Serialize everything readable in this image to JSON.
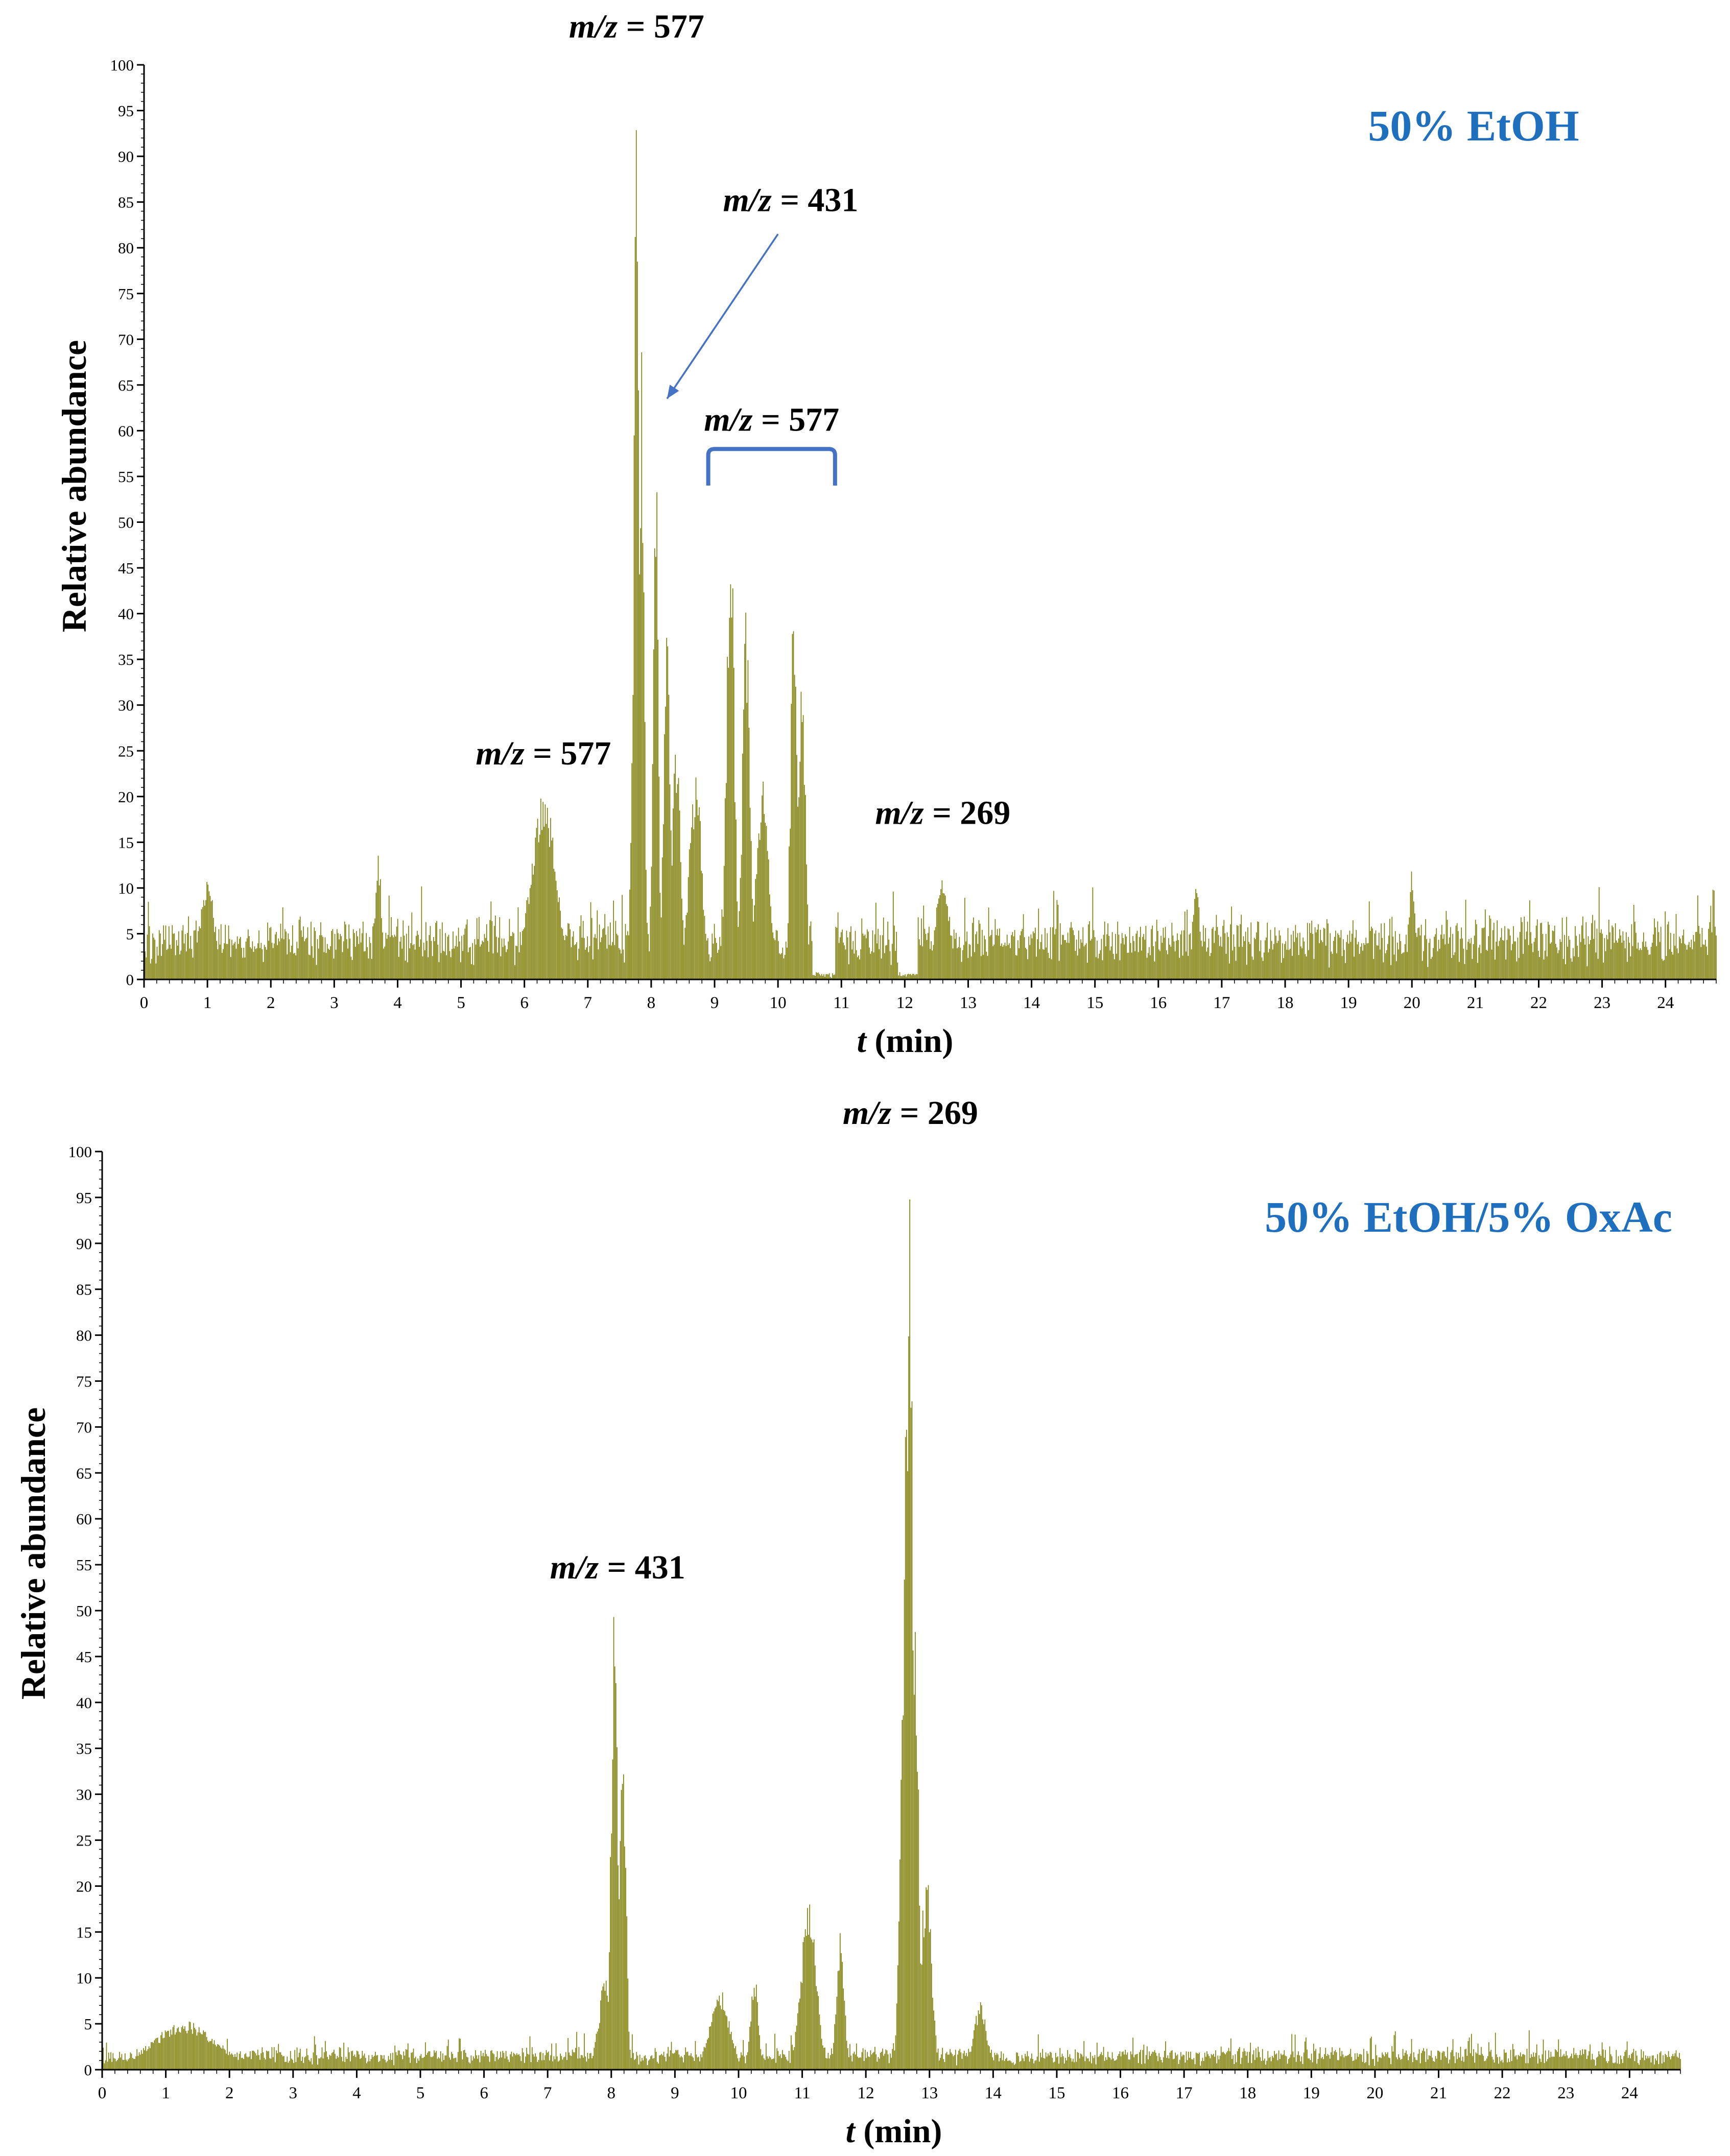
{
  "figure": {
    "trace_color": "#7a7a00",
    "label_color": "#1f6fbf",
    "arrow_color": "#4472c4",
    "text_color": "#000000"
  },
  "chart_data": [
    {
      "type": "bar",
      "condition": "50% EtOH",
      "xlabel_italic": "t",
      "xlabel_unit": " (min)",
      "ylabel": "Relative abundance",
      "xlim": [
        0,
        24.8
      ],
      "ylim": [
        0,
        100
      ],
      "xticks": [
        "0",
        "1",
        "2",
        "3",
        "4",
        "5",
        "6",
        "7",
        "8",
        "9",
        "10",
        "11",
        "12",
        "13",
        "14",
        "15",
        "16",
        "17",
        "18",
        "19",
        "20",
        "21",
        "22",
        "23",
        "24"
      ],
      "yticks": [
        "0",
        "5",
        "10",
        "15",
        "20",
        "25",
        "30",
        "35",
        "40",
        "45",
        "50",
        "55",
        "60",
        "65",
        "70",
        "75",
        "80",
        "85",
        "90",
        "95",
        "100"
      ],
      "baseline": 5,
      "noise": 3.5,
      "peaks": [
        {
          "x": 1.0,
          "y": 11,
          "w": 0.12
        },
        {
          "x": 3.7,
          "y": 14,
          "w": 0.05
        },
        {
          "x": 6.3,
          "y": 21,
          "w": 0.2
        },
        {
          "x": 7.7,
          "y": 26,
          "w": 0.03
        },
        {
          "x": 7.77,
          "y": 100,
          "w": 0.04
        },
        {
          "x": 7.85,
          "y": 69,
          "w": 0.04
        },
        {
          "x": 8.07,
          "y": 62,
          "w": 0.04
        },
        {
          "x": 8.25,
          "y": 41,
          "w": 0.05
        },
        {
          "x": 8.4,
          "y": 28,
          "w": 0.06
        },
        {
          "x": 8.7,
          "y": 23,
          "w": 0.1
        },
        {
          "x": 9.25,
          "y": 54,
          "w": 0.06
        },
        {
          "x": 9.5,
          "y": 42,
          "w": 0.06
        },
        {
          "x": 9.75,
          "y": 22,
          "w": 0.1
        },
        {
          "x": 10.25,
          "y": 43,
          "w": 0.05
        },
        {
          "x": 10.38,
          "y": 38,
          "w": 0.05
        },
        {
          "x": 12.6,
          "y": 13,
          "w": 0.1
        },
        {
          "x": 16.6,
          "y": 12,
          "w": 0.05
        },
        {
          "x": 20.0,
          "y": 12,
          "w": 0.05
        }
      ],
      "dips": [
        {
          "from": 10.55,
          "to": 10.9
        },
        {
          "from": 11.9,
          "to": 12.2
        }
      ],
      "annotations": [
        {
          "label_italic": "m/z",
          "label_rest": " = 577",
          "x": 7.77,
          "y": 103
        },
        {
          "label_italic": "m/z",
          "label_rest": " = 431",
          "x": 10.2,
          "y": 84
        },
        {
          "label_italic": "m/z",
          "label_rest": " = 577",
          "x": 9.9,
          "y": 60
        },
        {
          "label_italic": "m/z",
          "label_rest": " = 577",
          "x": 6.3,
          "y": 23.5
        },
        {
          "label_italic": "m/z",
          "label_rest": " = 269",
          "x": 12.6,
          "y": 17
        }
      ],
      "arrow": {
        "from": [
          10.0,
          81.5
        ],
        "to": [
          8.25,
          63.5
        ]
      },
      "bracket": {
        "from": 8.9,
        "to": 10.9,
        "y_top": 58,
        "y_bottom": 54
      }
    },
    {
      "type": "bar",
      "condition": "50% EtOH/5% OxAc",
      "xlabel_italic": "t",
      "xlabel_unit": " (min)",
      "ylabel": "Relative abundance",
      "xlim": [
        0,
        24.8
      ],
      "ylim": [
        0,
        100
      ],
      "xticks": [
        "0",
        "1",
        "2",
        "3",
        "4",
        "5",
        "6",
        "7",
        "8",
        "9",
        "10",
        "11",
        "12",
        "13",
        "14",
        "15",
        "16",
        "17",
        "18",
        "19",
        "20",
        "21",
        "22",
        "23",
        "24"
      ],
      "yticks": [
        "0",
        "5",
        "10",
        "15",
        "20",
        "25",
        "30",
        "35",
        "40",
        "45",
        "50",
        "55",
        "60",
        "65",
        "70",
        "75",
        "80",
        "85",
        "90",
        "95",
        "100"
      ],
      "baseline": 1.5,
      "noise": 1.8,
      "peaks": [
        {
          "x": 1.3,
          "y": 5.5,
          "w": 0.5
        },
        {
          "x": 8.05,
          "y": 51,
          "w": 0.05
        },
        {
          "x": 8.18,
          "y": 39,
          "w": 0.05
        },
        {
          "x": 7.9,
          "y": 10,
          "w": 0.1
        },
        {
          "x": 9.7,
          "y": 9,
          "w": 0.15
        },
        {
          "x": 10.25,
          "y": 10.5,
          "w": 0.06
        },
        {
          "x": 11.1,
          "y": 18.5,
          "w": 0.12
        },
        {
          "x": 11.6,
          "y": 15.5,
          "w": 0.06
        },
        {
          "x": 12.58,
          "y": 46,
          "w": 0.05
        },
        {
          "x": 12.65,
          "y": 84,
          "w": 0.05
        },
        {
          "x": 12.7,
          "y": 100,
          "w": 0.04
        },
        {
          "x": 12.78,
          "y": 48,
          "w": 0.05
        },
        {
          "x": 12.95,
          "y": 22,
          "w": 0.08
        },
        {
          "x": 13.8,
          "y": 7.5,
          "w": 0.1
        }
      ],
      "dips": [],
      "annotations": [
        {
          "label_italic": "m/z",
          "label_rest": " = 269",
          "x": 12.7,
          "y": 103
        },
        {
          "label_italic": "m/z",
          "label_rest": " = 431",
          "x": 8.1,
          "y": 53.5
        }
      ],
      "arrow": null,
      "bracket": null
    }
  ]
}
